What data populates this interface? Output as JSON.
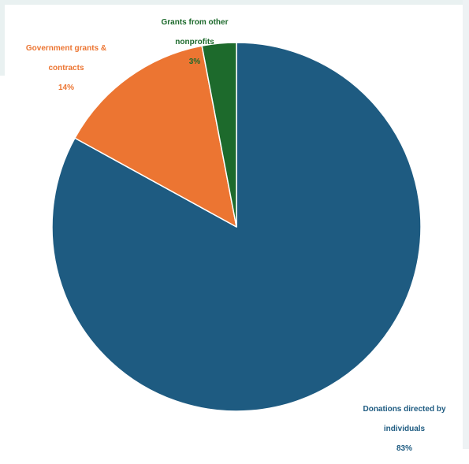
{
  "chart_data": {
    "type": "pie",
    "title": "",
    "slices": [
      {
        "label_lines": [
          "Donations directed by",
          "individuals"
        ],
        "value": 83,
        "value_label": "83%",
        "color": "#1e5b81"
      },
      {
        "label_lines": [
          "Government grants &",
          "contracts"
        ],
        "value": 14,
        "value_label": "14%",
        "color": "#ec7532"
      },
      {
        "label_lines": [
          "Grants from other",
          "nonprofits"
        ],
        "value": 3,
        "value_label": "3%",
        "color": "#1d6a2c"
      }
    ],
    "start_angle_deg": 0,
    "direction": "clockwise",
    "legend": "none"
  }
}
